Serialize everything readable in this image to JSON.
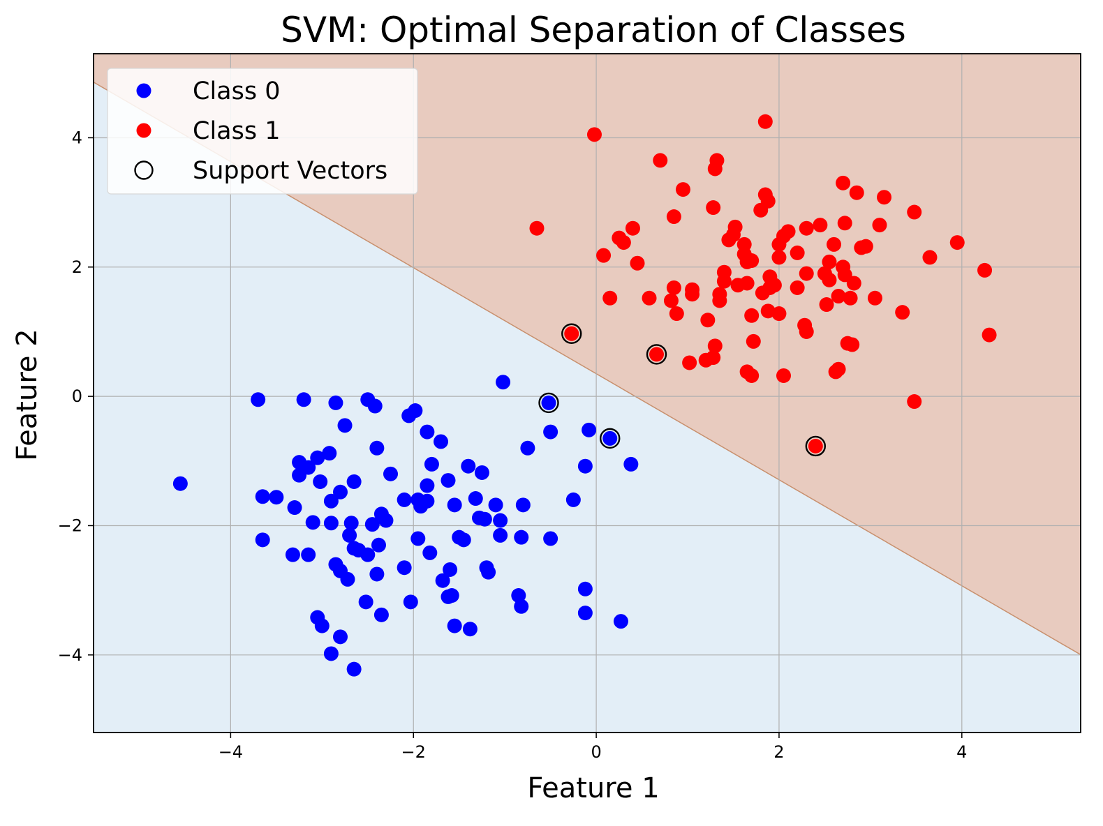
{
  "chart_data": {
    "type": "scatter",
    "title": "SVM: Optimal Separation of Classes",
    "xlabel": "Feature 1",
    "ylabel": "Feature 2",
    "xlim": [
      -5.5,
      5.3
    ],
    "ylim": [
      -5.2,
      5.3
    ],
    "xticks": [
      -4,
      -2,
      0,
      2,
      4
    ],
    "yticks": [
      -4,
      -2,
      0,
      2,
      4
    ],
    "grid": true,
    "legend_position": "top-left",
    "decision_boundary": {
      "slope": -0.82,
      "intercept": 0.35,
      "region_above_color": "#e8cbbf",
      "region_below_color": "#e3eef7",
      "edge_color": "#c8906e"
    },
    "series": [
      {
        "name": "Class 0",
        "color": "#0000ff",
        "marker": "filled-circle",
        "points": [
          [
            -4.55,
            -1.35
          ],
          [
            -3.7,
            -0.05
          ],
          [
            -3.2,
            -0.05
          ],
          [
            -2.85,
            -0.1
          ],
          [
            -2.5,
            -0.05
          ],
          [
            -2.42,
            -0.15
          ],
          [
            -2.75,
            -0.45
          ],
          [
            -2.4,
            -0.8
          ],
          [
            -2.05,
            -0.3
          ],
          [
            -1.98,
            -0.22
          ],
          [
            -1.85,
            -0.55
          ],
          [
            -1.7,
            -0.7
          ],
          [
            -1.8,
            -1.05
          ],
          [
            -1.85,
            -1.38
          ],
          [
            -1.62,
            -1.3
          ],
          [
            -2.25,
            -1.2
          ],
          [
            -1.4,
            -1.08
          ],
          [
            -1.25,
            -1.18
          ],
          [
            -1.02,
            0.22
          ],
          [
            -0.75,
            -0.8
          ],
          [
            -0.5,
            -0.55
          ],
          [
            -0.08,
            -0.52
          ],
          [
            -0.12,
            -1.08
          ],
          [
            0.38,
            -1.05
          ],
          [
            0.15,
            -0.65
          ],
          [
            -0.52,
            -0.1
          ],
          [
            -3.25,
            -1.02
          ],
          [
            -3.05,
            -0.95
          ],
          [
            -2.92,
            -0.88
          ],
          [
            -3.15,
            -1.1
          ],
          [
            -3.25,
            -1.22
          ],
          [
            -3.02,
            -1.32
          ],
          [
            -2.65,
            -1.32
          ],
          [
            -2.8,
            -1.48
          ],
          [
            -2.9,
            -1.62
          ],
          [
            -3.65,
            -1.55
          ],
          [
            -3.5,
            -1.56
          ],
          [
            -3.3,
            -1.72
          ],
          [
            -3.1,
            -1.95
          ],
          [
            -2.9,
            -1.96
          ],
          [
            -2.68,
            -1.96
          ],
          [
            -2.45,
            -1.98
          ],
          [
            -2.35,
            -1.82
          ],
          [
            -2.3,
            -1.92
          ],
          [
            -2.1,
            -1.6
          ],
          [
            -1.95,
            -1.6
          ],
          [
            -1.92,
            -1.7
          ],
          [
            -1.85,
            -1.62
          ],
          [
            -1.55,
            -1.68
          ],
          [
            -1.32,
            -1.58
          ],
          [
            -1.28,
            -1.88
          ],
          [
            -1.22,
            -1.9
          ],
          [
            -1.1,
            -1.68
          ],
          [
            -1.05,
            -1.92
          ],
          [
            -0.8,
            -1.68
          ],
          [
            -3.65,
            -2.22
          ],
          [
            -3.32,
            -2.45
          ],
          [
            -3.15,
            -2.45
          ],
          [
            -2.7,
            -2.15
          ],
          [
            -2.65,
            -2.35
          ],
          [
            -2.6,
            -2.38
          ],
          [
            -2.5,
            -2.45
          ],
          [
            -2.38,
            -2.3
          ],
          [
            -1.95,
            -2.2
          ],
          [
            -1.82,
            -2.42
          ],
          [
            -1.5,
            -2.18
          ],
          [
            -1.45,
            -2.22
          ],
          [
            -1.05,
            -2.15
          ],
          [
            -0.82,
            -2.18
          ],
          [
            -0.5,
            -2.2
          ],
          [
            -0.25,
            -1.6
          ],
          [
            -2.85,
            -2.6
          ],
          [
            -2.8,
            -2.7
          ],
          [
            -2.72,
            -2.83
          ],
          [
            -2.4,
            -2.75
          ],
          [
            -2.1,
            -2.65
          ],
          [
            -1.68,
            -2.85
          ],
          [
            -1.6,
            -2.68
          ],
          [
            -1.2,
            -2.65
          ],
          [
            -1.18,
            -2.72
          ],
          [
            -0.85,
            -3.08
          ],
          [
            -0.82,
            -3.25
          ],
          [
            -0.12,
            -2.98
          ],
          [
            -0.12,
            -3.35
          ],
          [
            0.27,
            -3.48
          ],
          [
            -2.52,
            -3.18
          ],
          [
            -2.03,
            -3.18
          ],
          [
            -1.62,
            -3.1
          ],
          [
            -1.58,
            -3.08
          ],
          [
            -3.05,
            -3.42
          ],
          [
            -3.0,
            -3.55
          ],
          [
            -2.8,
            -3.72
          ],
          [
            -2.35,
            -3.38
          ],
          [
            -1.55,
            -3.55
          ],
          [
            -1.38,
            -3.6
          ],
          [
            -2.9,
            -3.98
          ],
          [
            -2.65,
            -4.22
          ]
        ]
      },
      {
        "name": "Class 1",
        "color": "#ff0000",
        "marker": "filled-circle",
        "points": [
          [
            -0.02,
            4.05
          ],
          [
            1.85,
            4.25
          ],
          [
            0.7,
            3.65
          ],
          [
            1.32,
            3.65
          ],
          [
            1.3,
            3.52
          ],
          [
            0.95,
            3.2
          ],
          [
            1.85,
            3.12
          ],
          [
            1.88,
            3.02
          ],
          [
            2.7,
            3.3
          ],
          [
            2.85,
            3.15
          ],
          [
            3.15,
            3.08
          ],
          [
            1.8,
            2.88
          ],
          [
            1.28,
            2.92
          ],
          [
            0.85,
            2.78
          ],
          [
            3.48,
            2.85
          ],
          [
            -0.65,
            2.6
          ],
          [
            0.4,
            2.6
          ],
          [
            0.25,
            2.45
          ],
          [
            0.3,
            2.38
          ],
          [
            1.52,
            2.62
          ],
          [
            1.5,
            2.5
          ],
          [
            1.45,
            2.42
          ],
          [
            1.62,
            2.35
          ],
          [
            2.3,
            2.6
          ],
          [
            2.45,
            2.65
          ],
          [
            2.1,
            2.55
          ],
          [
            2.05,
            2.48
          ],
          [
            2.0,
            2.35
          ],
          [
            2.6,
            2.35
          ],
          [
            2.72,
            2.68
          ],
          [
            3.1,
            2.65
          ],
          [
            2.95,
            2.32
          ],
          [
            2.9,
            2.3
          ],
          [
            3.95,
            2.38
          ],
          [
            0.08,
            2.18
          ],
          [
            0.45,
            2.06
          ],
          [
            1.62,
            2.2
          ],
          [
            1.65,
            2.08
          ],
          [
            1.7,
            2.1
          ],
          [
            2.0,
            2.15
          ],
          [
            2.2,
            2.22
          ],
          [
            2.55,
            2.08
          ],
          [
            3.65,
            2.15
          ],
          [
            1.4,
            1.92
          ],
          [
            1.4,
            1.78
          ],
          [
            1.55,
            1.72
          ],
          [
            1.65,
            1.75
          ],
          [
            1.9,
            1.85
          ],
          [
            1.95,
            1.72
          ],
          [
            2.3,
            1.9
          ],
          [
            2.5,
            1.9
          ],
          [
            2.55,
            1.8
          ],
          [
            2.7,
            2.0
          ],
          [
            2.72,
            1.88
          ],
          [
            2.82,
            1.75
          ],
          [
            4.25,
            1.95
          ],
          [
            0.15,
            1.52
          ],
          [
            0.58,
            1.52
          ],
          [
            0.82,
            1.48
          ],
          [
            0.85,
            1.68
          ],
          [
            1.05,
            1.65
          ],
          [
            1.05,
            1.58
          ],
          [
            1.35,
            1.58
          ],
          [
            1.35,
            1.48
          ],
          [
            1.82,
            1.6
          ],
          [
            1.9,
            1.68
          ],
          [
            2.2,
            1.68
          ],
          [
            2.65,
            1.55
          ],
          [
            2.78,
            1.52
          ],
          [
            3.05,
            1.52
          ],
          [
            2.52,
            1.42
          ],
          [
            1.22,
            1.18
          ],
          [
            0.88,
            1.28
          ],
          [
            1.7,
            1.25
          ],
          [
            1.88,
            1.32
          ],
          [
            2.0,
            1.28
          ],
          [
            2.28,
            1.1
          ],
          [
            2.3,
            1.0
          ],
          [
            3.35,
            1.3
          ],
          [
            1.72,
            0.85
          ],
          [
            1.3,
            0.78
          ],
          [
            1.28,
            0.6
          ],
          [
            1.2,
            0.56
          ],
          [
            1.02,
            0.52
          ],
          [
            2.75,
            0.82
          ],
          [
            2.8,
            0.8
          ],
          [
            4.3,
            0.95
          ],
          [
            1.65,
            0.38
          ],
          [
            1.7,
            0.32
          ],
          [
            2.05,
            0.32
          ],
          [
            2.62,
            0.38
          ],
          [
            2.65,
            0.42
          ],
          [
            3.48,
            -0.08
          ],
          [
            -0.27,
            0.97
          ],
          [
            0.66,
            0.65
          ],
          [
            2.4,
            -0.77
          ]
        ]
      },
      {
        "name": "Support Vectors",
        "color": "#000000",
        "marker": "hollow-circle",
        "points": [
          [
            -0.27,
            0.97
          ],
          [
            0.66,
            0.65
          ],
          [
            -0.52,
            -0.1
          ],
          [
            0.15,
            -0.65
          ],
          [
            2.4,
            -0.77
          ]
        ]
      }
    ]
  }
}
